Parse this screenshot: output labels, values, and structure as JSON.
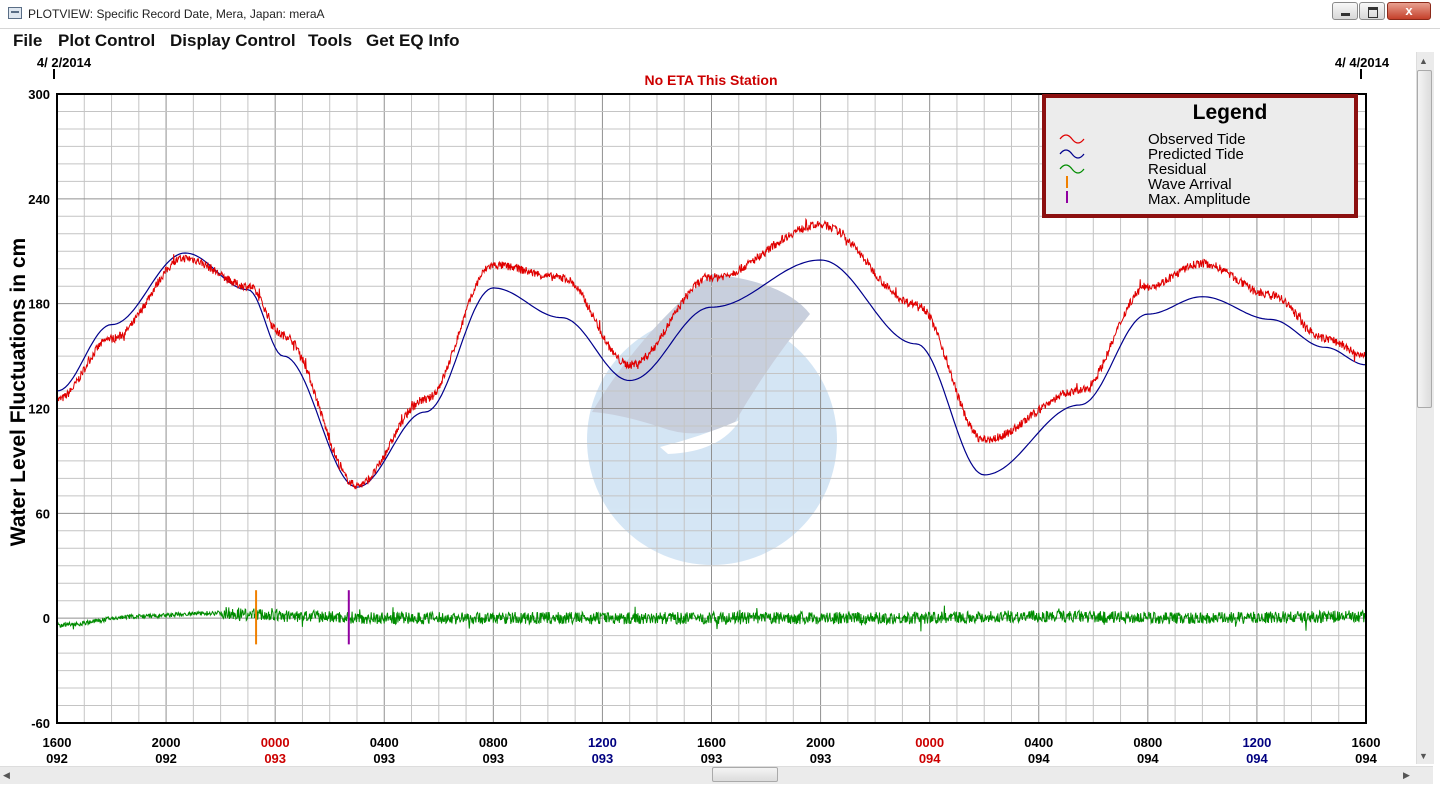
{
  "window": {
    "title": "PLOTVIEW: Specific Record Date, Mera, Japan: meraA",
    "close_glyph": "x"
  },
  "menu": [
    "File",
    "Plot Control",
    "Display Control",
    "Tools",
    "Get EQ Info"
  ],
  "colors": {
    "observed": "#e00000",
    "predicted": "#00008c",
    "residual": "#008c00",
    "wave_arrival": "#f08000",
    "max_amplitude": "#9000a0",
    "legend_border": "#8c1010",
    "day_change_red": "#cc0000",
    "noon_blue": "#000080"
  },
  "chart_data": {
    "type": "line",
    "title": "No ETA This Station",
    "start_date": "4/ 2/2014",
    "end_date": "4/ 4/2014",
    "ylabel": "Water Level Fluctuations in cm",
    "ylim": [
      -60,
      300
    ],
    "yticks": [
      "300",
      "240",
      "180",
      "120",
      "60",
      "0",
      "-60"
    ],
    "grid": true,
    "legend": {
      "title": "Legend",
      "position": "top-right",
      "entries": [
        {
          "label": "Observed Tide",
          "icon": "wave-icon"
        },
        {
          "label": "Predicted Tide",
          "icon": "wave-icon"
        },
        {
          "label": "Residual",
          "icon": "wave-icon"
        },
        {
          "label": "Wave Arrival",
          "icon": "tick-icon"
        },
        {
          "label": "Max. Amplitude",
          "icon": "tick-icon"
        }
      ]
    },
    "xlim_hours": [
      0,
      48
    ],
    "xticks": [
      {
        "time": "1600",
        "day": "092",
        "style": "normal"
      },
      {
        "time": "2000",
        "day": "092",
        "style": "normal"
      },
      {
        "time": "0000",
        "day": "093",
        "style": "red"
      },
      {
        "time": "0400",
        "day": "093",
        "style": "normal"
      },
      {
        "time": "0800",
        "day": "093",
        "style": "normal"
      },
      {
        "time": "1200",
        "day": "093",
        "style": "blue"
      },
      {
        "time": "1600",
        "day": "093",
        "style": "normal"
      },
      {
        "time": "2000",
        "day": "093",
        "style": "normal"
      },
      {
        "time": "0000",
        "day": "094",
        "style": "red"
      },
      {
        "time": "0400",
        "day": "094",
        "style": "normal"
      },
      {
        "time": "0800",
        "day": "094",
        "style": "normal"
      },
      {
        "time": "1200",
        "day": "094",
        "style": "blue"
      },
      {
        "time": "1600",
        "day": "094",
        "style": "normal"
      }
    ],
    "series": [
      {
        "name": "Predicted Tide",
        "x": [
          0,
          2,
          4.7,
          7,
          8.3,
          11,
          13.5,
          16,
          18.5,
          21,
          24,
          28,
          31.5,
          34,
          37.5,
          40,
          42,
          44.5,
          46.5,
          48
        ],
        "values": [
          130,
          168,
          209,
          188,
          150,
          75,
          118,
          189,
          172,
          136,
          178,
          205,
          157,
          82,
          122,
          174,
          184,
          171,
          155,
          145
        ]
      },
      {
        "name": "Observed Tide",
        "x": [
          0,
          2,
          4.7,
          7,
          8.3,
          11,
          13.5,
          16,
          18.5,
          21,
          24,
          28,
          31.5,
          34,
          37.5,
          40,
          42,
          44.5,
          46.5,
          48
        ],
        "values": [
          125,
          160,
          206,
          190,
          162,
          76,
          125,
          202,
          195,
          145,
          195,
          225,
          180,
          102,
          130,
          190,
          203,
          185,
          160,
          150
        ]
      },
      {
        "name": "Residual",
        "x": [
          0,
          3,
          6,
          9,
          12,
          18,
          24,
          30,
          36,
          42,
          48
        ],
        "values": [
          -4,
          1,
          3,
          1,
          0,
          0,
          0,
          0,
          1,
          0,
          1
        ]
      }
    ],
    "markers": [
      {
        "name": "Wave Arrival",
        "x": 7.3,
        "ymin": -15,
        "ymax": 16
      },
      {
        "name": "Max. Amplitude",
        "x": 10.7,
        "ymin": -15,
        "ymax": 16
      }
    ]
  }
}
